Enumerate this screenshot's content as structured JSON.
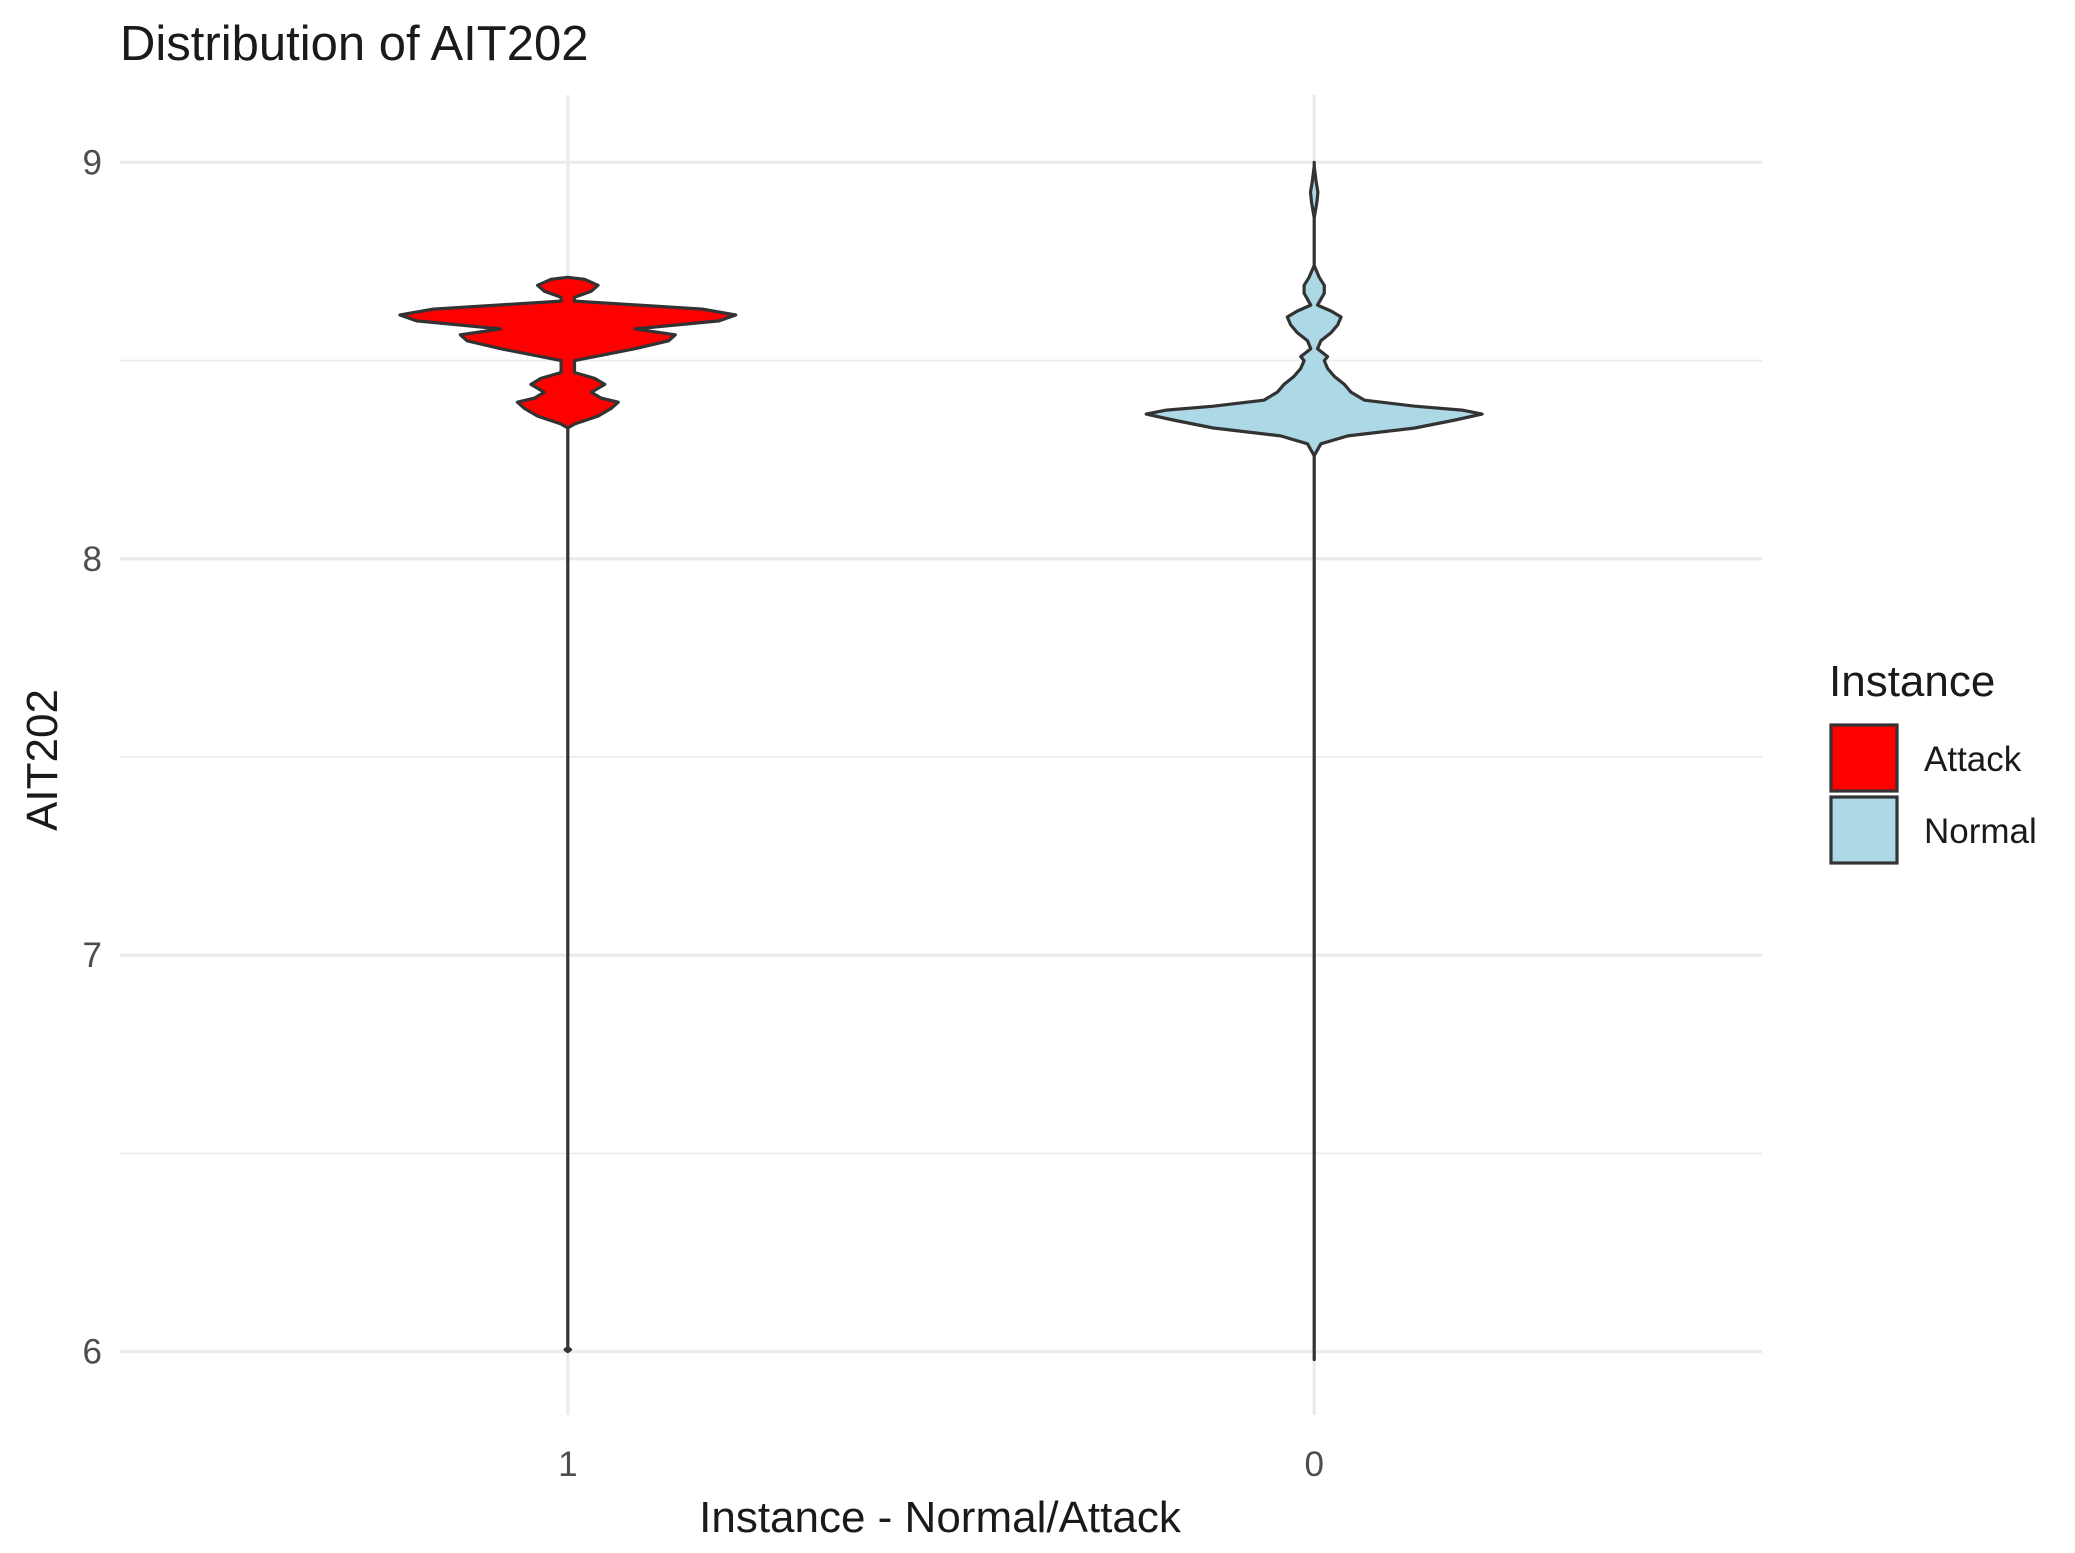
{
  "chart_data": {
    "type": "violin",
    "title": "Distribution of AIT202",
    "xlabel": "Instance - Normal/Attack",
    "ylabel": "AIT202",
    "categories": [
      "1",
      "0"
    ],
    "ylim": [
      5.84,
      9.17
    ],
    "yticks": [
      6,
      7,
      8,
      9
    ],
    "legend": {
      "title": "Instance",
      "placement": "right",
      "items": [
        {
          "label": "Attack",
          "color": "#ff0000"
        },
        {
          "label": "Normal",
          "color": "#add8e6"
        }
      ]
    },
    "series": [
      {
        "category": "1",
        "group": "Attack",
        "color": "#ff0000",
        "min": 6.0,
        "max": 8.71,
        "profile": [
          [
            6.0,
            0.0
          ],
          [
            6.005,
            0.008
          ],
          [
            6.01,
            0.0
          ],
          [
            8.33,
            0.0
          ],
          [
            8.34,
            0.02
          ],
          [
            8.36,
            0.09
          ],
          [
            8.38,
            0.13
          ],
          [
            8.395,
            0.15
          ],
          [
            8.405,
            0.1
          ],
          [
            8.42,
            0.07
          ],
          [
            8.44,
            0.11
          ],
          [
            8.455,
            0.08
          ],
          [
            8.47,
            0.02
          ],
          [
            8.5,
            0.02
          ],
          [
            8.53,
            0.2
          ],
          [
            8.55,
            0.3
          ],
          [
            8.565,
            0.32
          ],
          [
            8.58,
            0.2
          ],
          [
            8.6,
            0.45
          ],
          [
            8.615,
            0.5
          ],
          [
            8.63,
            0.4
          ],
          [
            8.65,
            0.02
          ],
          [
            8.66,
            0.02
          ],
          [
            8.675,
            0.07
          ],
          [
            8.69,
            0.09
          ],
          [
            8.705,
            0.05
          ],
          [
            8.71,
            0.0
          ]
        ]
      },
      {
        "category": "0",
        "group": "Normal",
        "color": "#add8e6",
        "min": 5.98,
        "max": 9.0,
        "profile": [
          [
            5.98,
            0.0
          ],
          [
            8.26,
            0.0
          ],
          [
            8.29,
            0.02
          ],
          [
            8.31,
            0.1
          ],
          [
            8.33,
            0.3
          ],
          [
            8.35,
            0.42
          ],
          [
            8.365,
            0.5
          ],
          [
            8.375,
            0.44
          ],
          [
            8.385,
            0.3
          ],
          [
            8.4,
            0.15
          ],
          [
            8.42,
            0.11
          ],
          [
            8.44,
            0.09
          ],
          [
            8.46,
            0.06
          ],
          [
            8.48,
            0.04
          ],
          [
            8.5,
            0.03
          ],
          [
            8.51,
            0.04
          ],
          [
            8.53,
            0.01
          ],
          [
            8.55,
            0.02
          ],
          [
            8.57,
            0.05
          ],
          [
            8.59,
            0.07
          ],
          [
            8.61,
            0.08
          ],
          [
            8.625,
            0.05
          ],
          [
            8.64,
            0.01
          ],
          [
            8.67,
            0.03
          ],
          [
            8.69,
            0.03
          ],
          [
            8.71,
            0.015
          ],
          [
            8.74,
            0.0
          ],
          [
            8.86,
            0.0
          ],
          [
            8.9,
            0.008
          ],
          [
            8.925,
            0.011
          ],
          [
            8.95,
            0.006
          ],
          [
            8.99,
            0.0
          ],
          [
            9.0,
            0.0
          ]
        ]
      }
    ]
  }
}
